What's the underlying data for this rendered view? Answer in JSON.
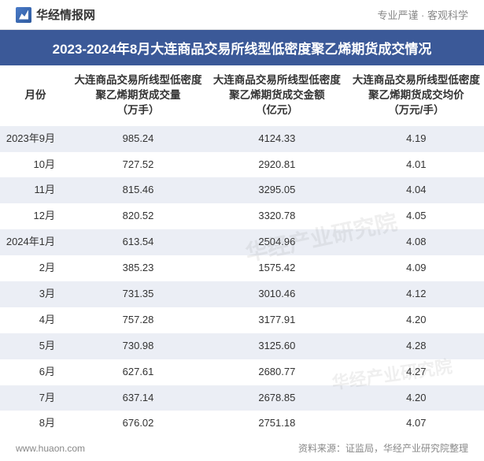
{
  "header": {
    "logo_text": "华经情报网",
    "tagline": "专业严谨 · 客观科学"
  },
  "title": "2023-2024年8月大连商品交易所线型低密度聚乙烯期货成交情况",
  "table": {
    "type": "table",
    "columns": [
      "月份",
      "大连商品交易所线型低密度聚乙烯期货成交量\n（万手）",
      "大连商品交易所线型低密度聚乙烯期货成交金额\n（亿元）",
      "大连商品交易所线型低密度聚乙烯期货成交均价\n（万元/手）"
    ],
    "column_widths": [
      "90px",
      "175px",
      "175px",
      "175px"
    ],
    "header_fontsize": 13.5,
    "cell_fontsize": 13,
    "alt_row_bg": "#ebeef5",
    "base_row_bg": "#ffffff",
    "text_color": "#333333",
    "rows": [
      {
        "month": "2023年9月",
        "volume": "985.24",
        "amount": "4124.33",
        "avg": "4.19"
      },
      {
        "month": "10月",
        "volume": "727.52",
        "amount": "2920.81",
        "avg": "4.01"
      },
      {
        "month": "11月",
        "volume": "815.46",
        "amount": "3295.05",
        "avg": "4.04"
      },
      {
        "month": "12月",
        "volume": "820.52",
        "amount": "3320.78",
        "avg": "4.05"
      },
      {
        "month": "2024年1月",
        "volume": "613.54",
        "amount": "2504.96",
        "avg": "4.08"
      },
      {
        "month": "2月",
        "volume": "385.23",
        "amount": "1575.42",
        "avg": "4.09"
      },
      {
        "month": "3月",
        "volume": "731.35",
        "amount": "3010.46",
        "avg": "4.12"
      },
      {
        "month": "4月",
        "volume": "757.28",
        "amount": "3177.91",
        "avg": "4.20"
      },
      {
        "month": "5月",
        "volume": "730.98",
        "amount": "3125.60",
        "avg": "4.28"
      },
      {
        "month": "6月",
        "volume": "627.61",
        "amount": "2680.77",
        "avg": "4.27"
      },
      {
        "month": "7月",
        "volume": "637.14",
        "amount": "2678.85",
        "avg": "4.20"
      },
      {
        "month": "8月",
        "volume": "676.02",
        "amount": "2751.18",
        "avg": "4.07"
      }
    ]
  },
  "footer": {
    "url": "www.huaon.com",
    "source": "资料来源：证监局，华经产业研究院整理"
  },
  "watermarks": {
    "wm1": "华经产业研究院",
    "wm2": "华经产业研究院"
  },
  "styling": {
    "title_bg": "#3b5998",
    "title_color": "#ffffff",
    "title_fontsize": 17,
    "header_border": "#e0e0e0",
    "footer_color": "#888888",
    "footer_fontsize": 12,
    "tagline_color": "#888888"
  }
}
